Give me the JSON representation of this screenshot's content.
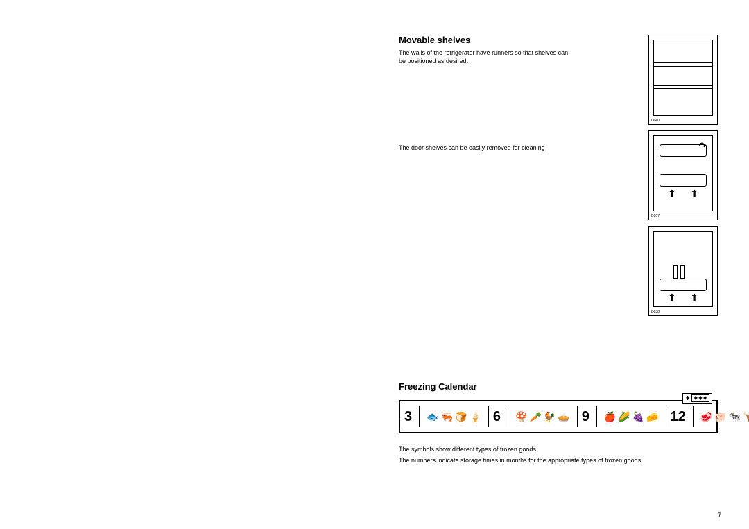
{
  "section1": {
    "heading": "Movable shelves",
    "para1": "The walls of the refrigerator have runners so that shelves can be positioned as desired.",
    "para2": "The door shelves can be easily removed for cleaning"
  },
  "figures": {
    "fig1_label": "D040",
    "fig2_label": "D307",
    "fig3_label": "D038"
  },
  "section2": {
    "heading": "Freezing Calendar",
    "note1": "The symbols show different types of frozen goods.",
    "note2": "The numbers indicate storage times in months for the appropriate types of frozen goods."
  },
  "calendar": {
    "groups": [
      {
        "num": "3",
        "icons": [
          "🐟",
          "🦐",
          "🍞",
          "🍦"
        ]
      },
      {
        "num": "6",
        "icons": [
          "🍄",
          "🥕",
          "🐓",
          "🥧"
        ]
      },
      {
        "num": "9",
        "icons": [
          "🍎",
          "🌽",
          "🍇",
          "🧀"
        ]
      },
      {
        "num": "12",
        "icons": [
          "🥩",
          "🐖",
          "🐄",
          "🍗"
        ]
      }
    ],
    "badge_star": "✱",
    "badge_stars": "✱✱✱"
  },
  "page_number": "7",
  "colors": {
    "text": "#000000",
    "background": "#ffffff",
    "border": "#000000"
  }
}
